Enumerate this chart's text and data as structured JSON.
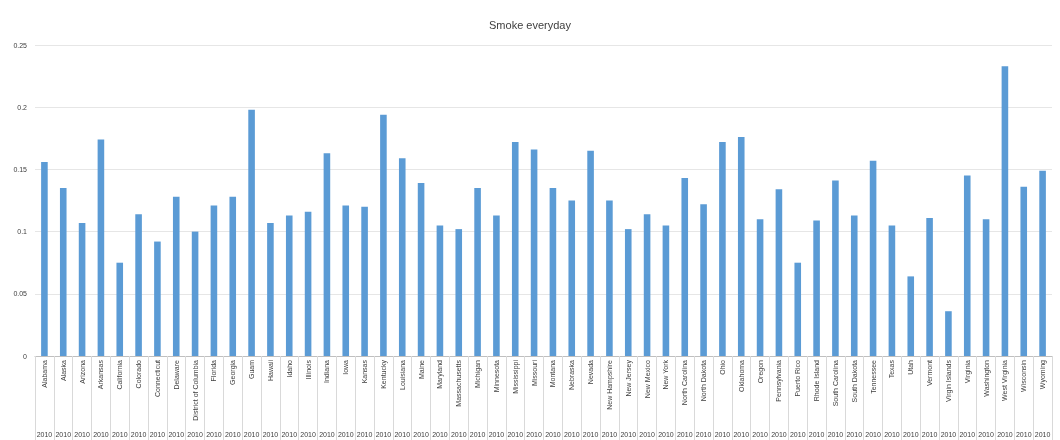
{
  "chart_data": {
    "type": "bar",
    "title": "Smoke everyday",
    "categories": [
      "Alabama",
      "Alaska",
      "Arizona",
      "Arkansas",
      "California",
      "Colorado",
      "Connecticut",
      "Delaware",
      "District of Columbia",
      "Florida",
      "Georgia",
      "Guam",
      "Hawaii",
      "Idaho",
      "Illinois",
      "Indiana",
      "Iowa",
      "Kansas",
      "Kentucky",
      "Louisiana",
      "Maine",
      "Maryland",
      "Massachusetts",
      "Michigan",
      "Minnesota",
      "Mississippi",
      "Missouri",
      "Montana",
      "Nebraska",
      "Nevada",
      "New Hampshire",
      "New Jersey",
      "New Mexico",
      "New York",
      "North Carolina",
      "North Dakota",
      "Ohio",
      "Oklahoma",
      "Oregon",
      "Pennsylvania",
      "Puerto Rico",
      "Rhode Island",
      "South Carolina",
      "South Dakota",
      "Tennessee",
      "Texas",
      "Utah",
      "Vermont",
      "Virgin Islands",
      "Virginia",
      "Washington",
      "West Virginia",
      "Wisconsin",
      "Wyoming"
    ],
    "values": [
      0.156,
      0.135,
      0.107,
      0.174,
      0.075,
      0.114,
      0.092,
      0.128,
      0.1,
      0.121,
      0.128,
      0.198,
      0.107,
      0.113,
      0.116,
      0.163,
      0.121,
      0.12,
      0.194,
      0.159,
      0.139,
      0.105,
      0.102,
      0.135,
      0.113,
      0.172,
      0.166,
      0.135,
      0.125,
      0.165,
      0.125,
      0.102,
      0.114,
      0.105,
      0.143,
      0.122,
      0.172,
      0.176,
      0.11,
      0.134,
      0.075,
      0.109,
      0.141,
      0.113,
      0.157,
      0.105,
      0.064,
      0.111,
      0.036,
      0.145,
      0.11,
      0.233,
      0.136,
      0.149
    ],
    "color": "#5b9bd5",
    "ylim": [
      0,
      0.25
    ],
    "yticks": [
      0,
      0.05,
      0.1,
      0.15,
      0.2,
      0.25
    ],
    "grid": "y",
    "annotations": [
      "2010",
      "2010",
      "2010",
      "2010",
      "2010",
      "2010",
      "2010",
      "2010",
      "2010",
      "2010",
      "2010",
      "2010",
      "2010",
      "2010",
      "2010",
      "2010",
      "2010",
      "2010",
      "2010",
      "2010",
      "2010",
      "2010",
      "2010",
      "2010",
      "2010",
      "2010",
      "2010",
      "2010",
      "2010",
      "2010",
      "2010",
      "2010",
      "2010",
      "2010",
      "2010",
      "2010",
      "2010",
      "2010",
      "2010",
      "2010",
      "2010",
      "2010",
      "2010",
      "2010",
      "2010",
      "2010",
      "2010",
      "2010",
      "2010",
      "2010",
      "2010",
      "2010",
      "2010",
      "2010"
    ]
  }
}
